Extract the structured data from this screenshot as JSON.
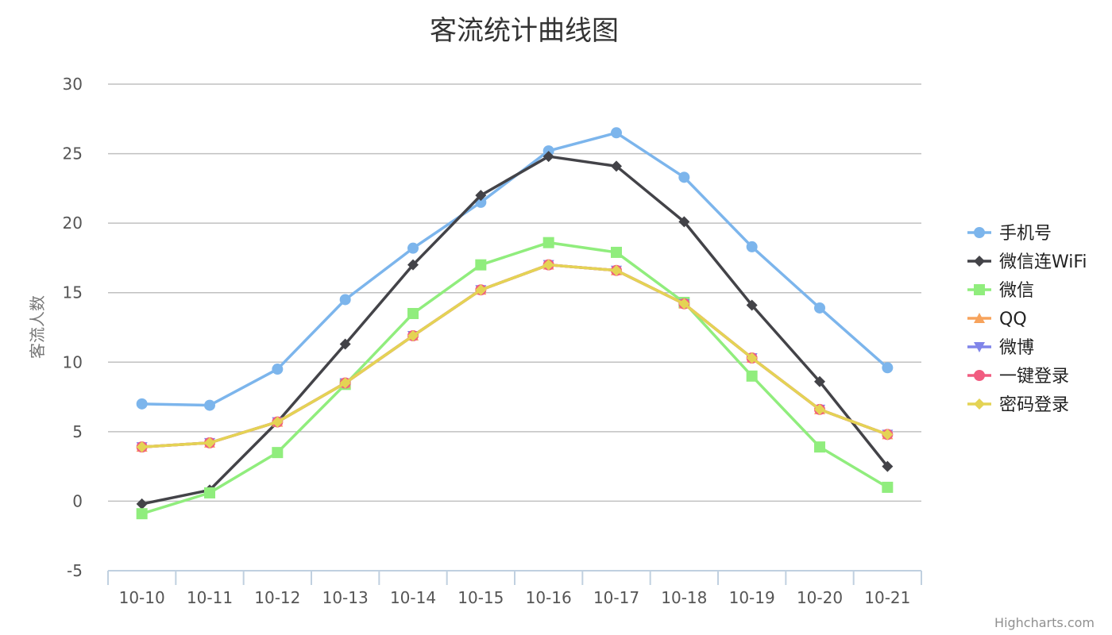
{
  "chart_data": {
    "type": "line",
    "title": "客流统计曲线图",
    "ylabel": "客流人数",
    "xlabel": "",
    "categories": [
      "10-10",
      "10-11",
      "10-12",
      "10-13",
      "10-14",
      "10-15",
      "10-16",
      "10-17",
      "10-18",
      "10-19",
      "10-20",
      "10-21"
    ],
    "ylim": [
      -5,
      30
    ],
    "yticks": [
      -5,
      0,
      5,
      10,
      15,
      20,
      25,
      30
    ],
    "grid": true,
    "legend_position": "right",
    "series": [
      {
        "name": "手机号",
        "color": "#7cb5ec",
        "marker": "circle",
        "values": [
          7.0,
          6.9,
          9.5,
          14.5,
          18.2,
          21.5,
          25.2,
          26.5,
          23.3,
          18.3,
          13.9,
          9.6
        ]
      },
      {
        "name": "微信连WiFi",
        "color": "#434348",
        "marker": "diamond",
        "values": [
          -0.2,
          0.8,
          5.7,
          11.3,
          17.0,
          22.0,
          24.8,
          24.1,
          20.1,
          14.1,
          8.6,
          2.5
        ]
      },
      {
        "name": "微信",
        "color": "#90ed7d",
        "marker": "square",
        "values": [
          -0.9,
          0.6,
          3.5,
          8.4,
          13.5,
          17.0,
          18.6,
          17.9,
          14.3,
          9.0,
          3.9,
          1.0
        ]
      },
      {
        "name": "QQ",
        "color": "#f7a35c",
        "marker": "triangle",
        "values": [
          3.9,
          4.2,
          5.7,
          8.5,
          11.9,
          15.2,
          17.0,
          16.6,
          14.2,
          10.3,
          6.6,
          4.8
        ]
      },
      {
        "name": "微博",
        "color": "#8085e9",
        "marker": "triangle-down",
        "values": [
          3.9,
          4.2,
          5.7,
          8.5,
          11.9,
          15.2,
          17.0,
          16.6,
          14.2,
          10.3,
          6.6,
          4.8
        ]
      },
      {
        "name": "一键登录",
        "color": "#f15c80",
        "marker": "circle",
        "values": [
          3.9,
          4.2,
          5.7,
          8.5,
          11.9,
          15.2,
          17.0,
          16.6,
          14.2,
          10.3,
          6.6,
          4.8
        ]
      },
      {
        "name": "密码登录",
        "color": "#e4d354",
        "marker": "diamond",
        "values": [
          3.9,
          4.2,
          5.7,
          8.5,
          11.9,
          15.2,
          17.0,
          16.6,
          14.2,
          10.3,
          6.6,
          4.8
        ]
      }
    ],
    "credits": "Highcharts.com"
  }
}
